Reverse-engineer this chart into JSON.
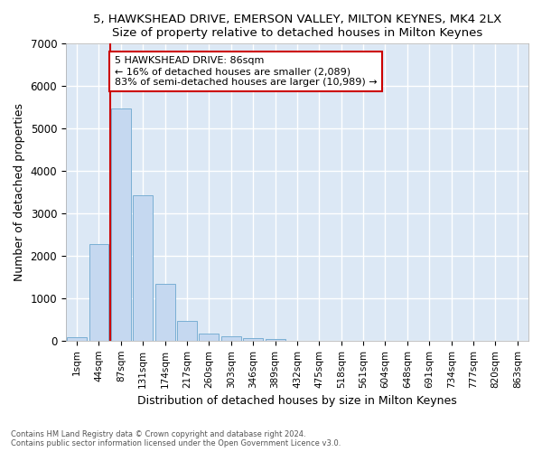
{
  "title": "5, HAWKSHEAD DRIVE, EMERSON VALLEY, MILTON KEYNES, MK4 2LX",
  "subtitle": "Size of property relative to detached houses in Milton Keynes",
  "xlabel": "Distribution of detached houses by size in Milton Keynes",
  "ylabel": "Number of detached properties",
  "bar_color": "#c5d8f0",
  "bar_edge_color": "#7aafd4",
  "background_color": "#dce8f5",
  "grid_color": "#ffffff",
  "annotation_box_color": "#ffffff",
  "annotation_box_edge": "#cc0000",
  "vline_color": "#cc0000",
  "vline_x_index": 2,
  "annotation_text_line1": "5 HAWKSHEAD DRIVE: 86sqm",
  "annotation_text_line2": "← 16% of detached houses are smaller (2,089)",
  "annotation_text_line3": "83% of semi-detached houses are larger (10,989) →",
  "categories": [
    "1sqm",
    "44sqm",
    "87sqm",
    "131sqm",
    "174sqm",
    "217sqm",
    "260sqm",
    "303sqm",
    "346sqm",
    "389sqm",
    "432sqm",
    "475sqm",
    "518sqm",
    "561sqm",
    "604sqm",
    "648sqm",
    "691sqm",
    "734sqm",
    "777sqm",
    "820sqm",
    "863sqm"
  ],
  "values": [
    80,
    2280,
    5480,
    3430,
    1330,
    470,
    160,
    110,
    50,
    40,
    0,
    0,
    0,
    0,
    0,
    0,
    0,
    0,
    0,
    0,
    0
  ],
  "ylim": [
    0,
    7000
  ],
  "yticks": [
    0,
    1000,
    2000,
    3000,
    4000,
    5000,
    6000,
    7000
  ],
  "figure_bg": "#ffffff",
  "footer_line1": "Contains HM Land Registry data © Crown copyright and database right 2024.",
  "footer_line2": "Contains public sector information licensed under the Open Government Licence v3.0."
}
